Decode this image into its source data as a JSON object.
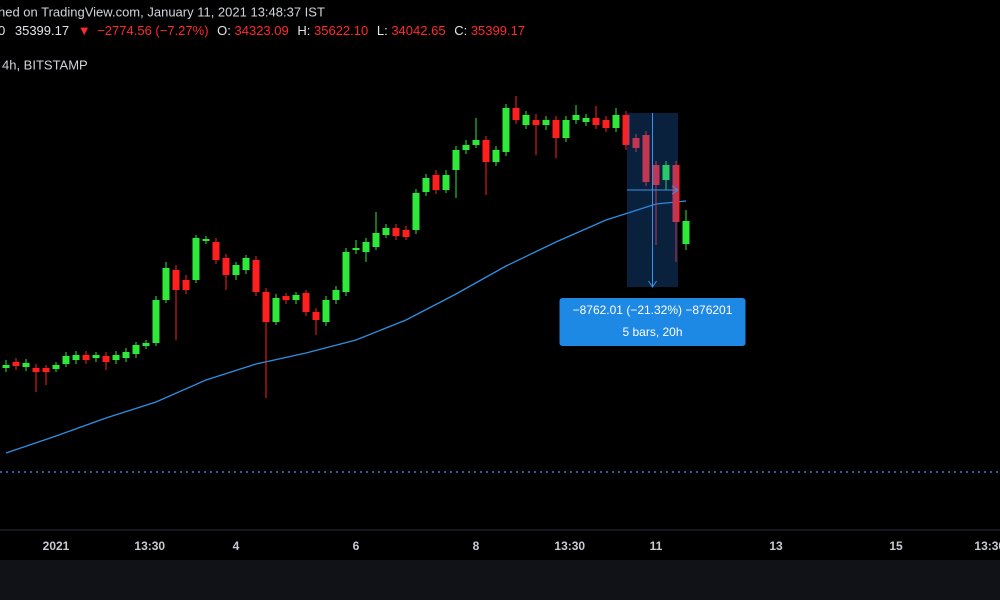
{
  "header": {
    "published": "hed on TradingView.com, January 11, 2021 13:48:37 IST",
    "values": [
      "0",
      "35399.17",
      "▼",
      "−2774.56 (−7.27%)",
      "O:",
      "34323.09",
      "H:",
      "35622.10",
      "L:",
      "34042.65",
      "C:",
      "35399.17"
    ],
    "symbol": "4h, BITSTAMP"
  },
  "chart_data": {
    "type": "candlestick",
    "up_color": "#2ee83a",
    "down_color": "#ff1f1f",
    "xlim": [
      -22.4,
      377.6
    ],
    "ylim": [
      19900,
      46400
    ],
    "xticks": [
      {
        "value": 0,
        "label": "2021"
      },
      {
        "value": 37.5,
        "label": "13:30"
      },
      {
        "value": 72,
        "label": "4"
      },
      {
        "value": 120,
        "label": "6"
      },
      {
        "value": 168,
        "label": "8"
      },
      {
        "value": 205.5,
        "label": "13:30"
      },
      {
        "value": 240,
        "label": "11"
      },
      {
        "value": 288,
        "label": "13"
      },
      {
        "value": 336,
        "label": "15"
      },
      {
        "value": 373.5,
        "label": "13:30"
      }
    ],
    "x": [
      -20,
      -16,
      -12,
      -8,
      -4,
      0,
      4,
      8,
      12,
      16,
      20,
      24,
      28,
      32,
      36,
      40,
      44,
      48,
      52,
      56,
      60,
      64,
      68,
      72,
      76,
      80,
      84,
      88,
      92,
      96,
      100,
      104,
      108,
      112,
      116,
      120,
      124,
      128,
      132,
      136,
      140,
      144,
      148,
      152,
      156,
      160,
      164,
      168,
      172,
      176,
      180,
      184,
      188,
      192,
      196,
      200,
      204,
      208,
      212,
      216,
      220,
      224,
      228,
      232,
      236,
      240,
      244,
      248,
      252
    ],
    "open": [
      28000,
      28300,
      28050,
      28000,
      28000,
      27950,
      28200,
      28400,
      28650,
      28500,
      28600,
      28400,
      28500,
      28700,
      29100,
      29250,
      31400,
      32900,
      32400,
      32400,
      34350,
      34300,
      33500,
      32650,
      32900,
      33400,
      31800,
      30300,
      31600,
      31400,
      31750,
      30800,
      30300,
      31400,
      31800,
      33900,
      33800,
      34050,
      34650,
      35000,
      34900,
      34900,
      36800,
      37650,
      36900,
      37900,
      38900,
      39150,
      39400,
      38300,
      38800,
      41000,
      40150,
      40400,
      40150,
      40400,
      39500,
      40400,
      40300,
      40500,
      40400,
      40000,
      40650,
      39500,
      39650,
      38150,
      37400,
      38150,
      34200
    ],
    "high": [
      28400,
      28500,
      28450,
      28200,
      28150,
      28300,
      28800,
      28850,
      28850,
      28800,
      28800,
      28850,
      29000,
      29300,
      29400,
      31600,
      33300,
      33150,
      32650,
      34650,
      34600,
      34500,
      33700,
      33300,
      33650,
      33600,
      32000,
      31700,
      31750,
      31800,
      31900,
      31000,
      31600,
      32100,
      34000,
      34400,
      34500,
      35800,
      35200,
      35200,
      35100,
      36950,
      37700,
      37900,
      37900,
      39100,
      39400,
      40500,
      39600,
      39100,
      41200,
      41600,
      40850,
      40700,
      40600,
      40600,
      40600,
      41150,
      40700,
      41100,
      40600,
      41000,
      40850,
      39700,
      39850,
      38350,
      38350,
      38350,
      35900
    ],
    "low": [
      27800,
      27900,
      27850,
      26800,
      27150,
      27800,
      28050,
      28200,
      28200,
      28300,
      27900,
      28200,
      28300,
      28500,
      28950,
      29100,
      31250,
      29400,
      31700,
      32250,
      34200,
      33200,
      31900,
      32400,
      32700,
      31600,
      26500,
      30150,
      31200,
      31200,
      30600,
      29650,
      30100,
      31200,
      31600,
      33700,
      33300,
      33900,
      34500,
      34400,
      34400,
      34700,
      36600,
      36700,
      36750,
      36500,
      38700,
      39000,
      36650,
      38100,
      38600,
      40200,
      39950,
      38650,
      39900,
      38500,
      39300,
      40200,
      40100,
      39950,
      39800,
      39800,
      38900,
      38800,
      37100,
      34150,
      36900,
      33300,
      33900
    ],
    "close": [
      28150,
      28100,
      28250,
      27800,
      27800,
      28150,
      28600,
      28650,
      28400,
      28650,
      28300,
      28650,
      28800,
      29150,
      29250,
      31400,
      33000,
      31900,
      31900,
      34500,
      34450,
      33400,
      32650,
      33150,
      33500,
      31800,
      30300,
      31500,
      31400,
      31650,
      30800,
      30400,
      31400,
      31900,
      33800,
      34000,
      34300,
      34750,
      35000,
      34600,
      34550,
      36750,
      37500,
      36900,
      37650,
      38900,
      39150,
      39400,
      38300,
      38900,
      41000,
      40400,
      40650,
      40150,
      40400,
      39500,
      40400,
      40650,
      40500,
      40150,
      40000,
      40650,
      39150,
      39000,
      37300,
      37150,
      38150,
      35300,
      35350
    ],
    "ma": {
      "color": "#2f8fe0",
      "x": [
        -20,
        0,
        20,
        40,
        60,
        80,
        100,
        120,
        140,
        160,
        180,
        200,
        220,
        240,
        252
      ],
      "values": [
        23750,
        24600,
        25500,
        26300,
        27400,
        28200,
        28750,
        29400,
        30400,
        31700,
        33100,
        34300,
        35400,
        36200,
        36350
      ]
    },
    "price_line": {
      "value": 22800,
      "color": "#3d7fe0"
    },
    "measure": {
      "x": [
        228.4,
        248.8
      ],
      "price": [
        40750,
        32050
      ],
      "text": [
        "−8762.01 (−21.32%) −876201",
        "5 bars, 20h"
      ]
    }
  }
}
